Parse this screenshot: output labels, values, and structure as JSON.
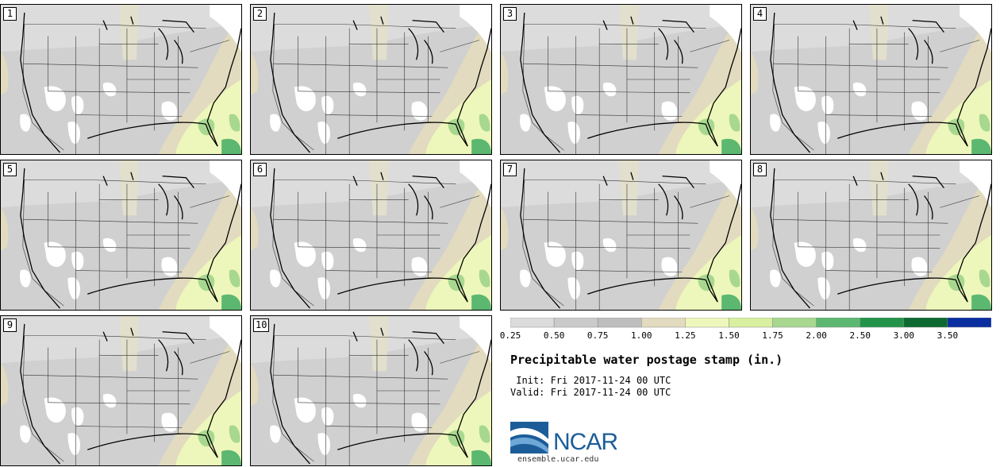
{
  "panels": [
    {
      "label": "1"
    },
    {
      "label": "2"
    },
    {
      "label": "3"
    },
    {
      "label": "4"
    },
    {
      "label": "5"
    },
    {
      "label": "6"
    },
    {
      "label": "7"
    },
    {
      "label": "8"
    },
    {
      "label": "9"
    },
    {
      "label": "10"
    }
  ],
  "legend": {
    "ticks": [
      "0.25",
      "0.50",
      "0.75",
      "1.00",
      "1.25",
      "1.50",
      "1.75",
      "2.00",
      "2.50",
      "3.00",
      "3.50"
    ],
    "colors": [
      "#dcdcdc",
      "#cacaca",
      "#bebebe",
      "#e2dbbf",
      "#eef7bb",
      "#d8f0a0",
      "#a8d890",
      "#5cb870",
      "#22944a",
      "#0c6a30",
      "#0a2ea0"
    ]
  },
  "title": "Precipitable water postage stamp (in.)",
  "init_line": " Init: Fri 2017-11-24 00 UTC",
  "valid_line": "Valid: Fri 2017-11-24 00 UTC",
  "logo": {
    "text": "NCAR",
    "site": "ensemble.ucar.edu"
  }
}
